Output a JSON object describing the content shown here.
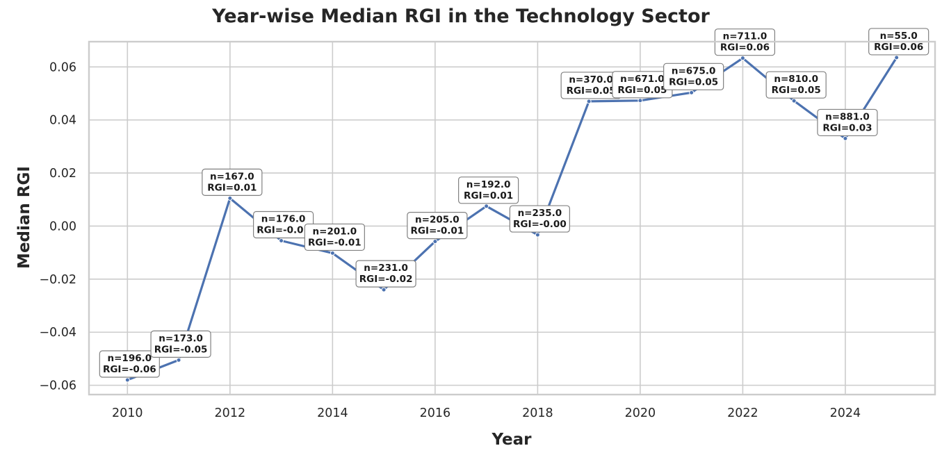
{
  "chart_data": {
    "type": "line",
    "title": "Year-wise Median RGI in the Technology Sector",
    "xlabel": "Year",
    "ylabel": "Median RGI",
    "xlim": [
      2009.25,
      2025.75
    ],
    "ylim": [
      -0.0635,
      0.0695
    ],
    "grid": true,
    "x_ticks": [
      2010,
      2012,
      2014,
      2016,
      2018,
      2020,
      2022,
      2024
    ],
    "x_tick_labels": [
      "2010",
      "2012",
      "2014",
      "2016",
      "2018",
      "2020",
      "2022",
      "2024"
    ],
    "y_ticks": [
      -0.06,
      -0.04,
      -0.02,
      0.0,
      0.02,
      0.04,
      0.06
    ],
    "y_tick_labels": [
      "−0.06",
      "−0.04",
      "−0.02",
      "0.00",
      "0.02",
      "0.04",
      "0.06"
    ],
    "series": [
      {
        "color": "#4c72b0",
        "x": [
          2010,
          2011,
          2012,
          2013,
          2014,
          2015,
          2016,
          2017,
          2018,
          2019,
          2020,
          2021,
          2022,
          2023,
          2024,
          2025
        ],
        "y": [
          -0.058,
          -0.0505,
          0.0105,
          -0.0055,
          -0.0102,
          -0.024,
          -0.0058,
          0.0075,
          -0.0033,
          0.047,
          0.0473,
          0.0503,
          0.0633,
          0.0472,
          0.033,
          0.0635
        ]
      }
    ],
    "annotations": [
      {
        "line1": "n=196.0",
        "line2": "RGI=-0.06"
      },
      {
        "line1": "n=173.0",
        "line2": "RGI=-0.05"
      },
      {
        "line1": "n=167.0",
        "line2": "RGI=0.01"
      },
      {
        "line1": "n=176.0",
        "line2": "RGI=-0.01"
      },
      {
        "line1": "n=201.0",
        "line2": "RGI=-0.01"
      },
      {
        "line1": "n=231.0",
        "line2": "RGI=-0.02"
      },
      {
        "line1": "n=205.0",
        "line2": "RGI=-0.01"
      },
      {
        "line1": "n=192.0",
        "line2": "RGI=0.01"
      },
      {
        "line1": "n=235.0",
        "line2": "RGI=-0.00"
      },
      {
        "line1": "n=370.0",
        "line2": "RGI=0.05"
      },
      {
        "line1": "n=671.0",
        "line2": "RGI=0.05"
      },
      {
        "line1": "n=675.0",
        "line2": "RGI=0.05"
      },
      {
        "line1": "n=711.0",
        "line2": "RGI=0.06"
      },
      {
        "line1": "n=810.0",
        "line2": "RGI=0.05"
      },
      {
        "line1": "n=881.0",
        "line2": "RGI=0.03"
      },
      {
        "line1": "n=55.0",
        "line2": "RGI=0.06"
      }
    ]
  }
}
